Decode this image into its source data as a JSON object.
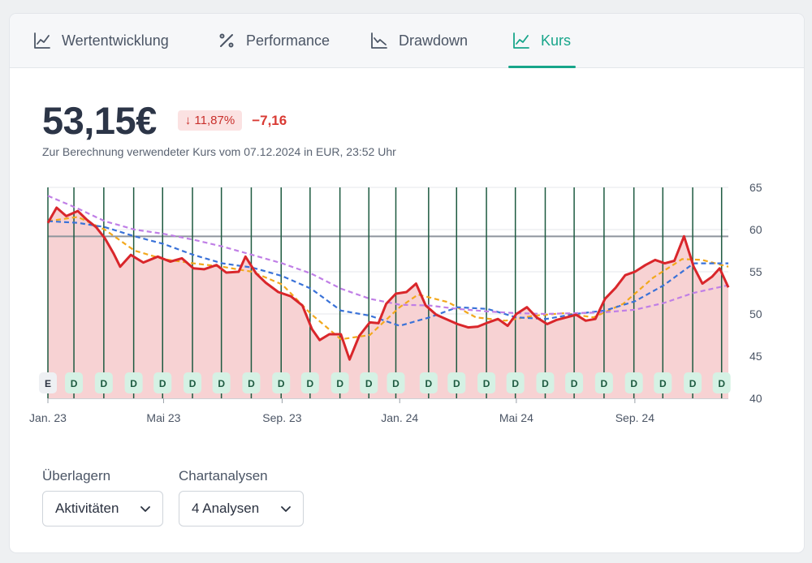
{
  "tabs": [
    {
      "label": "Wertentwicklung",
      "icon": "line-chart-icon",
      "active": false
    },
    {
      "label": "Performance",
      "icon": "percent-icon",
      "active": false
    },
    {
      "label": "Drawdown",
      "icon": "drawdown-chart-icon",
      "active": false
    },
    {
      "label": "Kurs",
      "icon": "line-chart-icon",
      "active": true
    }
  ],
  "quote": {
    "price": "53,15€",
    "change_pct": "↓ 11,87%",
    "change_abs": "−7,16",
    "subline": "Zur Berechnung verwendeter Kurs vom 07.12.2024 in EUR, 23:52 Uhr"
  },
  "controls": {
    "overlay_label": "Überlagern",
    "overlay_value": "Aktivitäten",
    "analysis_label": "Chartanalysen",
    "analysis_value": "4 Analysen"
  },
  "colors": {
    "accent": "#17a58a",
    "price_line": "#d9262b",
    "area_fill": "#f7d2d3",
    "ma_orange": "#f2a81d",
    "ma_blue": "#3a72d8",
    "ma_purple": "#c07fe6",
    "reference_line": "#8e959d",
    "marker_line": "#1d5a40"
  },
  "chart_data": {
    "type": "line",
    "ylim": [
      40,
      65
    ],
    "yticks": [
      65,
      60,
      55,
      50,
      45,
      40
    ],
    "xlim": [
      "2023-01-01",
      "2024-12-07"
    ],
    "xticks": [
      {
        "label": "Jan. 23",
        "date": "2023-01-01"
      },
      {
        "label": "Mai 23",
        "date": "2023-05-01"
      },
      {
        "label": "Sep. 23",
        "date": "2023-09-01"
      },
      {
        "label": "Jan. 24",
        "date": "2024-01-01"
      },
      {
        "label": "Mai 24",
        "date": "2024-05-01"
      },
      {
        "label": "Sep. 24",
        "date": "2024-09-01"
      }
    ],
    "reference_level": 59.2,
    "grid": true,
    "series": [
      {
        "role": "price",
        "points": [
          [
            "2023-01-01",
            60.8
          ],
          [
            "2023-01-10",
            62.6
          ],
          [
            "2023-01-20",
            61.6
          ],
          [
            "2023-02-01",
            62.2
          ],
          [
            "2023-02-10",
            61.2
          ],
          [
            "2023-02-20",
            60.3
          ],
          [
            "2023-03-01",
            59.0
          ],
          [
            "2023-03-10",
            57.2
          ],
          [
            "2023-03-17",
            55.6
          ],
          [
            "2023-03-28",
            57.0
          ],
          [
            "2023-04-10",
            56.1
          ],
          [
            "2023-04-25",
            56.8
          ],
          [
            "2023-05-08",
            56.2
          ],
          [
            "2023-05-20",
            56.6
          ],
          [
            "2023-06-01",
            55.4
          ],
          [
            "2023-06-12",
            55.3
          ],
          [
            "2023-06-25",
            55.8
          ],
          [
            "2023-07-05",
            54.9
          ],
          [
            "2023-07-18",
            55.0
          ],
          [
            "2023-07-25",
            56.8
          ],
          [
            "2023-08-05",
            54.8
          ],
          [
            "2023-08-15",
            53.7
          ],
          [
            "2023-08-28",
            52.6
          ],
          [
            "2023-09-10",
            52.1
          ],
          [
            "2023-09-22",
            51.0
          ],
          [
            "2023-10-02",
            48.2
          ],
          [
            "2023-10-10",
            46.9
          ],
          [
            "2023-10-20",
            47.6
          ],
          [
            "2023-11-01",
            47.6
          ],
          [
            "2023-11-10",
            44.6
          ],
          [
            "2023-11-20",
            47.4
          ],
          [
            "2023-12-01",
            49.0
          ],
          [
            "2023-12-10",
            48.9
          ],
          [
            "2023-12-18",
            51.2
          ],
          [
            "2023-12-28",
            52.4
          ],
          [
            "2024-01-08",
            52.6
          ],
          [
            "2024-01-18",
            53.6
          ],
          [
            "2024-01-28",
            51.0
          ],
          [
            "2024-02-08",
            49.9
          ],
          [
            "2024-02-18",
            49.4
          ],
          [
            "2024-03-01",
            48.8
          ],
          [
            "2024-03-12",
            48.4
          ],
          [
            "2024-03-22",
            48.5
          ],
          [
            "2024-04-02",
            49.0
          ],
          [
            "2024-04-12",
            49.4
          ],
          [
            "2024-04-22",
            48.6
          ],
          [
            "2024-05-01",
            50.0
          ],
          [
            "2024-05-12",
            50.8
          ],
          [
            "2024-05-22",
            49.6
          ],
          [
            "2024-06-02",
            48.8
          ],
          [
            "2024-06-12",
            49.3
          ],
          [
            "2024-06-22",
            49.6
          ],
          [
            "2024-07-02",
            49.9
          ],
          [
            "2024-07-12",
            49.2
          ],
          [
            "2024-07-22",
            49.4
          ],
          [
            "2024-08-01",
            51.8
          ],
          [
            "2024-08-12",
            53.1
          ],
          [
            "2024-08-22",
            54.6
          ],
          [
            "2024-09-01",
            55.0
          ],
          [
            "2024-09-12",
            55.8
          ],
          [
            "2024-09-22",
            56.4
          ],
          [
            "2024-10-02",
            56.0
          ],
          [
            "2024-10-12",
            56.3
          ],
          [
            "2024-10-22",
            59.2
          ],
          [
            "2024-11-01",
            55.6
          ],
          [
            "2024-11-10",
            53.6
          ],
          [
            "2024-11-20",
            54.4
          ],
          [
            "2024-11-28",
            55.4
          ],
          [
            "2024-12-07",
            53.15
          ]
        ]
      },
      {
        "role": "moving-average-orange",
        "points": [
          [
            "2023-01-01",
            61.0
          ],
          [
            "2023-02-01",
            61.5
          ],
          [
            "2023-03-01",
            60.0
          ],
          [
            "2023-04-01",
            57.5
          ],
          [
            "2023-05-01",
            56.5
          ],
          [
            "2023-06-01",
            56.0
          ],
          [
            "2023-07-01",
            55.6
          ],
          [
            "2023-08-01",
            55.0
          ],
          [
            "2023-09-01",
            53.5
          ],
          [
            "2023-10-01",
            50.0
          ],
          [
            "2023-11-01",
            47.0
          ],
          [
            "2023-12-01",
            47.5
          ],
          [
            "2024-01-01",
            50.8
          ],
          [
            "2024-01-20",
            52.3
          ],
          [
            "2024-02-20",
            51.4
          ],
          [
            "2024-03-20",
            49.6
          ],
          [
            "2024-04-20",
            49.2
          ],
          [
            "2024-05-20",
            49.8
          ],
          [
            "2024-06-20",
            50.1
          ],
          [
            "2024-07-20",
            49.6
          ],
          [
            "2024-08-20",
            51.2
          ],
          [
            "2024-09-20",
            54.3
          ],
          [
            "2024-10-20",
            56.5
          ],
          [
            "2024-11-10",
            56.4
          ],
          [
            "2024-12-07",
            55.6
          ]
        ]
      },
      {
        "role": "moving-average-blue",
        "points": [
          [
            "2023-01-01",
            61.0
          ],
          [
            "2023-02-01",
            60.8
          ],
          [
            "2023-03-01",
            60.3
          ],
          [
            "2023-04-01",
            59.2
          ],
          [
            "2023-05-01",
            58.3
          ],
          [
            "2023-06-01",
            57.0
          ],
          [
            "2023-07-01",
            56.0
          ],
          [
            "2023-08-01",
            55.5
          ],
          [
            "2023-09-01",
            54.5
          ],
          [
            "2023-10-01",
            53.0
          ],
          [
            "2023-11-01",
            50.4
          ],
          [
            "2023-12-01",
            49.8
          ],
          [
            "2024-01-01",
            48.6
          ],
          [
            "2024-02-01",
            49.6
          ],
          [
            "2024-03-01",
            50.8
          ],
          [
            "2024-04-01",
            50.6
          ],
          [
            "2024-05-01",
            49.6
          ],
          [
            "2024-06-01",
            49.4
          ],
          [
            "2024-07-01",
            50.0
          ],
          [
            "2024-08-01",
            50.4
          ],
          [
            "2024-09-01",
            51.5
          ],
          [
            "2024-10-01",
            53.4
          ],
          [
            "2024-11-01",
            56.0
          ],
          [
            "2024-12-07",
            56.0
          ]
        ]
      },
      {
        "role": "moving-average-purple",
        "points": [
          [
            "2023-01-01",
            64.0
          ],
          [
            "2023-02-01",
            62.5
          ],
          [
            "2023-03-01",
            61.0
          ],
          [
            "2023-04-01",
            60.0
          ],
          [
            "2023-05-01",
            59.5
          ],
          [
            "2023-06-01",
            58.8
          ],
          [
            "2023-07-01",
            58.0
          ],
          [
            "2023-08-01",
            57.0
          ],
          [
            "2023-09-01",
            56.0
          ],
          [
            "2023-10-01",
            54.8
          ],
          [
            "2023-11-01",
            53.0
          ],
          [
            "2023-12-01",
            51.8
          ],
          [
            "2024-01-01",
            51.1
          ],
          [
            "2024-02-01",
            51.0
          ],
          [
            "2024-03-01",
            50.6
          ],
          [
            "2024-04-01",
            50.3
          ],
          [
            "2024-05-01",
            50.1
          ],
          [
            "2024-06-01",
            50.0
          ],
          [
            "2024-07-01",
            50.1
          ],
          [
            "2024-08-01",
            50.2
          ],
          [
            "2024-09-01",
            50.5
          ],
          [
            "2024-10-01",
            51.3
          ],
          [
            "2024-11-01",
            52.5
          ],
          [
            "2024-12-07",
            53.4
          ]
        ]
      }
    ],
    "activity_markers": [
      {
        "date": "2023-01-01",
        "label": "E"
      },
      {
        "date": "2023-01-28",
        "label": "D"
      },
      {
        "date": "2023-02-28",
        "label": "D"
      },
      {
        "date": "2023-03-31",
        "label": "D"
      },
      {
        "date": "2023-04-30",
        "label": "D"
      },
      {
        "date": "2023-05-31",
        "label": "D"
      },
      {
        "date": "2023-06-30",
        "label": "D"
      },
      {
        "date": "2023-07-31",
        "label": "D"
      },
      {
        "date": "2023-08-31",
        "label": "D"
      },
      {
        "date": "2023-09-30",
        "label": "D"
      },
      {
        "date": "2023-10-31",
        "label": "D"
      },
      {
        "date": "2023-11-30",
        "label": "D"
      },
      {
        "date": "2023-12-28",
        "label": "D"
      },
      {
        "date": "2024-01-31",
        "label": "D"
      },
      {
        "date": "2024-02-29",
        "label": "D"
      },
      {
        "date": "2024-03-31",
        "label": "D"
      },
      {
        "date": "2024-04-30",
        "label": "D"
      },
      {
        "date": "2024-05-31",
        "label": "D"
      },
      {
        "date": "2024-06-30",
        "label": "D"
      },
      {
        "date": "2024-07-31",
        "label": "D"
      },
      {
        "date": "2024-08-31",
        "label": "D"
      },
      {
        "date": "2024-09-30",
        "label": "D"
      },
      {
        "date": "2024-10-31",
        "label": "D"
      },
      {
        "date": "2024-11-30",
        "label": "D"
      }
    ]
  }
}
